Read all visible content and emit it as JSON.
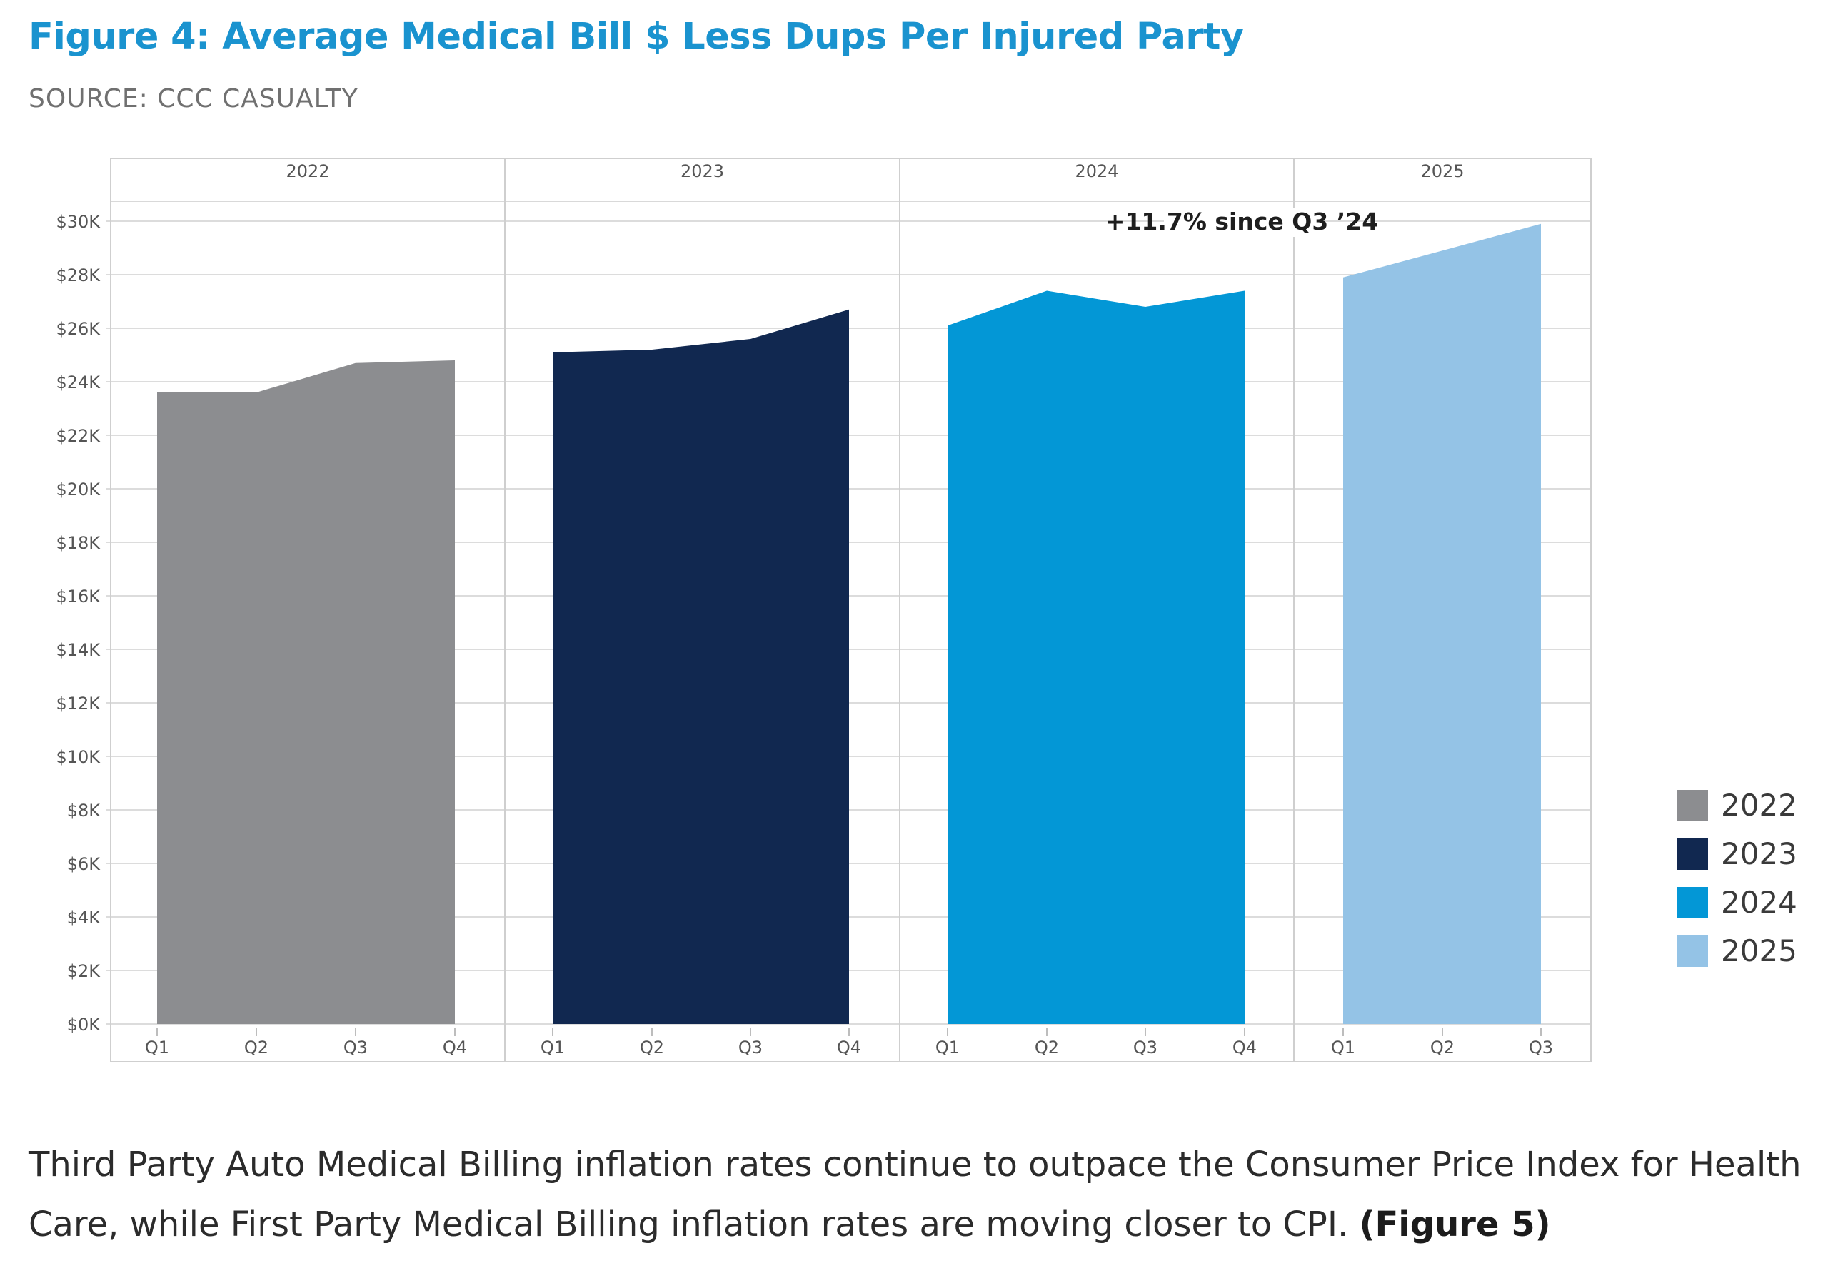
{
  "figure": {
    "title": "Figure 4: Average Medical Bill $ Less Dups Per Injured Party",
    "source": "SOURCE: CCC CASUALTY"
  },
  "chart_data": {
    "type": "area",
    "title": "Figure 4: Average Medical Bill $ Less Dups Per Injured Party",
    "ylim": [
      0,
      30000
    ],
    "yticks": [
      0,
      2000,
      4000,
      6000,
      8000,
      10000,
      12000,
      14000,
      16000,
      18000,
      20000,
      22000,
      24000,
      26000,
      28000,
      30000
    ],
    "ytick_labels": [
      "$0K",
      "$2K",
      "$4K",
      "$6K",
      "$8K",
      "$10K",
      "$12K",
      "$14K",
      "$16K",
      "$18K",
      "$20K",
      "$22K",
      "$24K",
      "$26K",
      "$28K",
      "$30K"
    ],
    "grid": true,
    "legend_position": "right",
    "series": [
      {
        "name": "2022",
        "color": "#8c8d90",
        "quarters": [
          "Q1",
          "Q2",
          "Q3",
          "Q4"
        ],
        "values": [
          23600,
          23600,
          24700,
          24800
        ]
      },
      {
        "name": "2023",
        "color": "#112850",
        "quarters": [
          "Q1",
          "Q2",
          "Q3",
          "Q4"
        ],
        "values": [
          25100,
          25200,
          25600,
          26700
        ]
      },
      {
        "name": "2024",
        "color": "#0397d6",
        "quarters": [
          "Q1",
          "Q2",
          "Q3",
          "Q4"
        ],
        "values": [
          26100,
          27400,
          26800,
          27400
        ]
      },
      {
        "name": "2025",
        "color": "#94c3e6",
        "quarters": [
          "Q1",
          "Q2",
          "Q3"
        ],
        "values": [
          27900,
          28900,
          29900
        ]
      }
    ],
    "annotation": "+11.7% since Q3 ’24"
  },
  "body": {
    "paragraph": "Third Party Auto Medical Billing inflation rates continue to outpace the Consumer Price Index for Health Care, while First Party Medical Billing inflation rates are moving closer to CPI.",
    "figure_ref": "(Figure 5)"
  }
}
